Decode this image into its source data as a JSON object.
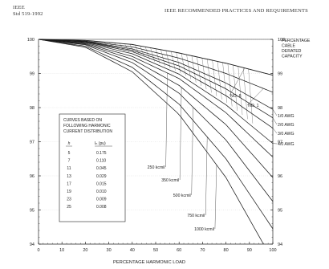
{
  "header": {
    "org": "IEEE",
    "std": "Std 519-1992",
    "title": "IEEE RECOMMENDED PRACTICES AND REQUIREMENTS"
  },
  "chart_data": {
    "type": "line",
    "xlabel": "PERCENTAGE HARMONIC LOAD",
    "ylabel_right": [
      "PERCENTAGE",
      "CABLE",
      "DERATED",
      "CAPACITY"
    ],
    "xlim": [
      0,
      100
    ],
    "ylim": [
      94,
      100
    ],
    "xticks": [
      0,
      10,
      20,
      30,
      40,
      50,
      60,
      70,
      80,
      90,
      100
    ],
    "yticks": [
      94,
      95,
      96,
      97,
      98,
      99,
      100
    ],
    "series": [
      {
        "name": "NO. 8",
        "x": [
          0,
          20,
          40,
          60,
          80,
          100
        ],
        "y": [
          100,
          99.97,
          99.85,
          99.6,
          99.3,
          98.95
        ]
      },
      {
        "name": "NO. 1",
        "x": [
          0,
          20,
          40,
          60,
          80,
          100
        ],
        "y": [
          100,
          99.95,
          99.78,
          99.45,
          99.0,
          98.45
        ]
      },
      {
        "name": "1/0 AWG",
        "x": [
          0,
          20,
          40,
          60,
          80,
          100
        ],
        "y": [
          100,
          99.94,
          99.72,
          99.32,
          98.72,
          97.95
        ]
      },
      {
        "name": "2/0 AWG",
        "x": [
          0,
          20,
          40,
          60,
          80,
          100
        ],
        "y": [
          100,
          99.93,
          99.68,
          99.22,
          98.55,
          97.7
        ]
      },
      {
        "name": "3/0 AWG",
        "x": [
          0,
          20,
          40,
          60,
          80,
          100
        ],
        "y": [
          100,
          99.92,
          99.64,
          99.12,
          98.35,
          97.4
        ]
      },
      {
        "name": "4/0 AWG",
        "x": [
          0,
          20,
          40,
          60,
          80,
          100
        ],
        "y": [
          100,
          99.9,
          99.58,
          98.98,
          98.08,
          96.95
        ]
      },
      {
        "name": "250 kcmil",
        "x": [
          0,
          20,
          40,
          60,
          80,
          100
        ],
        "y": [
          100,
          99.88,
          99.5,
          98.85,
          97.85,
          96.55
        ]
      },
      {
        "name": "350 kcmil",
        "x": [
          0,
          20,
          40,
          60,
          80,
          100
        ],
        "y": [
          100,
          99.86,
          99.42,
          98.65,
          97.5,
          95.95
        ]
      },
      {
        "name": "500 kcmil",
        "x": [
          0,
          20,
          40,
          60,
          80,
          100
        ],
        "y": [
          100,
          99.84,
          99.32,
          98.42,
          97.05,
          95.25
        ]
      },
      {
        "name": "750 kcmil",
        "x": [
          0,
          20,
          40,
          60,
          80,
          100
        ],
        "y": [
          100,
          99.8,
          99.18,
          98.1,
          96.5,
          94.45
        ]
      },
      {
        "name": "1000 kcmil",
        "x": [
          0,
          20,
          40,
          60,
          80,
          96
        ],
        "y": [
          100,
          99.77,
          99.05,
          97.8,
          95.95,
          94.0
        ]
      }
    ],
    "legend": {
      "title": [
        "CURVES BASED ON",
        "FOLLOWING HARMONIC",
        "CURRENT DISTRIBUTION"
      ],
      "col_h": "h",
      "col_ih": "Iₕ (pu)",
      "rows": [
        {
          "h": "5",
          "ih": "0.175"
        },
        {
          "h": "7",
          "ih": "0.110"
        },
        {
          "h": "11",
          "ih": "0.045"
        },
        {
          "h": "13",
          "ih": "0.029"
        },
        {
          "h": "17",
          "ih": "0.015"
        },
        {
          "h": "19",
          "ih": "0.010"
        },
        {
          "h": "23",
          "ih": "0.009"
        },
        {
          "h": "25",
          "ih": "0.008"
        }
      ]
    }
  }
}
